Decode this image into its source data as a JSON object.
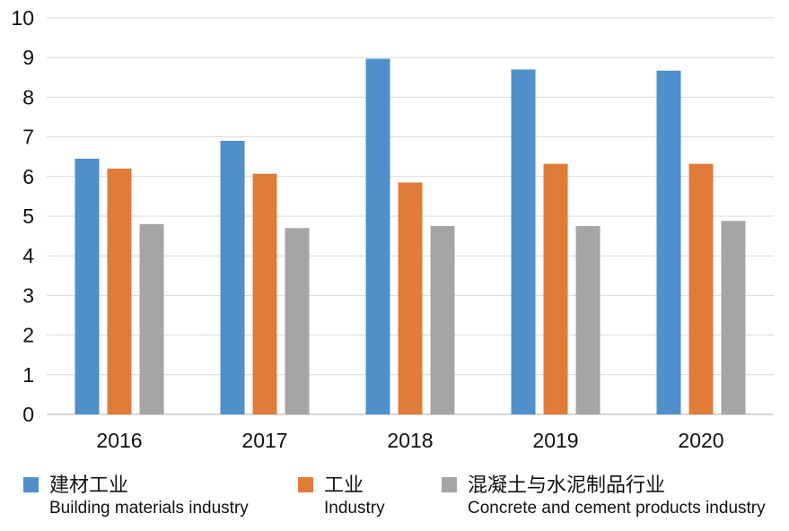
{
  "chart_data": {
    "type": "bar",
    "title": "",
    "xlabel": "",
    "ylabel": "",
    "ylim": [
      0,
      10
    ],
    "yticks": [
      "0",
      "1",
      "2",
      "3",
      "4",
      "5",
      "6",
      "7",
      "8",
      "9",
      "10"
    ],
    "grid": true,
    "categories": [
      "2016",
      "2017",
      "2018",
      "2019",
      "2020"
    ],
    "series": [
      {
        "name": "建材工业",
        "name_en": "Building materials industry",
        "color": "#4f8fcb",
        "values": [
          6.45,
          6.9,
          8.97,
          8.7,
          8.67
        ]
      },
      {
        "name": "工业",
        "name_en": "Industry",
        "color": "#e07b3a",
        "values": [
          6.2,
          6.07,
          5.85,
          6.32,
          6.32
        ]
      },
      {
        "name": "混凝土与水泥制品行业",
        "name_en": "Concrete and cement products industry",
        "color": "#a5a5a5",
        "values": [
          4.8,
          4.7,
          4.75,
          4.75,
          4.88
        ]
      }
    ],
    "legend_position": "bottom"
  }
}
